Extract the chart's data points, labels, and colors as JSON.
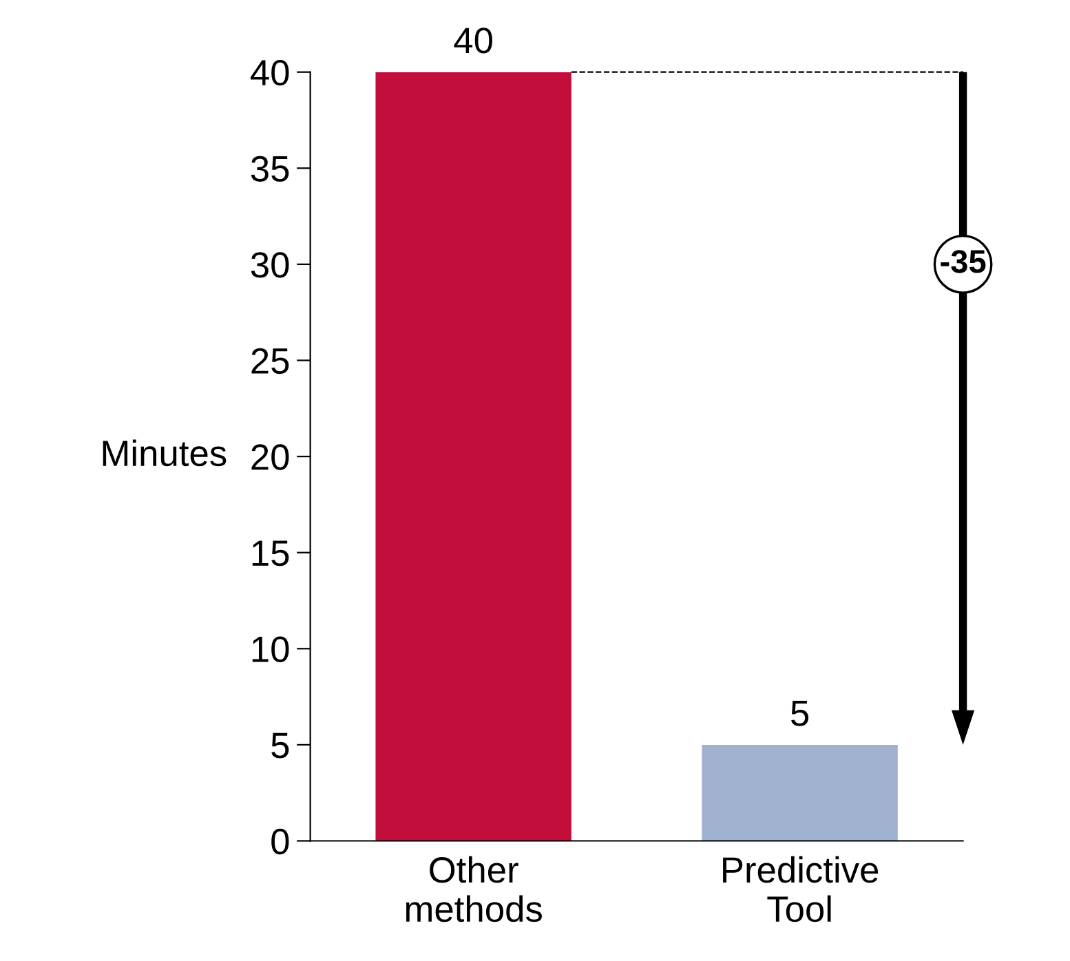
{
  "chart_data": {
    "type": "bar",
    "ylabel": "Minutes",
    "categories": [
      "Other methods",
      "Predictive Tool"
    ],
    "values": [
      40,
      5
    ],
    "colors": [
      "#c20e3a",
      "#9fb1cf"
    ],
    "ylim": [
      0,
      40
    ],
    "yticks": [
      0,
      5,
      10,
      15,
      20,
      25,
      30,
      35,
      40
    ],
    "data_labels": true,
    "grid": false,
    "ref_lines": [
      {
        "axis": "y",
        "value": 40,
        "color": "#000000",
        "line_style": "dashed"
      }
    ],
    "annotations": [
      "-35"
    ]
  }
}
